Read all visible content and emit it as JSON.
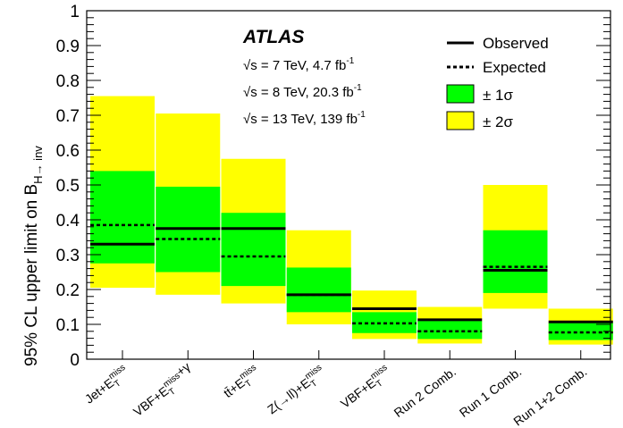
{
  "chart_data": {
    "type": "bar",
    "title": "",
    "ylabel_main": "95% CL upper limit on B",
    "ylabel_sub": "H→ inv",
    "ylim": [
      0,
      1
    ],
    "y_ticks": [
      "0",
      "0.1",
      "0.2",
      "0.3",
      "0.4",
      "0.5",
      "0.6",
      "0.7",
      "0.8",
      "0.9",
      "1"
    ],
    "categories": [
      "Jet+E_T^miss",
      "VBF+E_T^miss+γ",
      "tt̄+E_T^miss",
      "Z(→ll)+E_T^miss",
      "VBF+E_T^miss",
      "Run 2 Comb.",
      "Run 1 Comb.",
      "Run 1+2 Comb."
    ],
    "series": [
      {
        "name": "Observed",
        "values": [
          0.33,
          0.375,
          0.375,
          0.185,
          0.145,
          0.113,
          0.255,
          0.107
        ]
      },
      {
        "name": "Expected",
        "values": [
          0.385,
          0.345,
          0.295,
          0.185,
          0.103,
          0.08,
          0.265,
          0.077
        ]
      },
      {
        "name": "± 1σ",
        "low": [
          0.275,
          0.25,
          0.21,
          0.135,
          0.075,
          0.058,
          0.19,
          0.055
        ],
        "high": [
          0.54,
          0.495,
          0.42,
          0.263,
          0.135,
          0.11,
          0.37,
          0.105
        ]
      },
      {
        "name": "± 2σ",
        "low": [
          0.205,
          0.185,
          0.16,
          0.1,
          0.058,
          0.045,
          0.145,
          0.042
        ],
        "high": [
          0.755,
          0.705,
          0.575,
          0.37,
          0.197,
          0.15,
          0.5,
          0.145
        ]
      }
    ],
    "colors": {
      "one_sigma": "#00ff00",
      "two_sigma": "#ffff00",
      "observed": "#000000",
      "expected": "#000000"
    },
    "legend_placement": "top-right",
    "grid": false
  },
  "atlas_label": "ATLAS",
  "info_lines": [
    "√s = 7 TeV, 4.7 fb",
    "√s = 8 TeV, 20.3 fb",
    "√s = 13 TeV, 139 fb"
  ],
  "info_superscript": "-1",
  "legend": {
    "observed": "Observed",
    "expected": "Expected",
    "one_sigma": "± 1σ",
    "two_sigma": "± 2σ"
  }
}
